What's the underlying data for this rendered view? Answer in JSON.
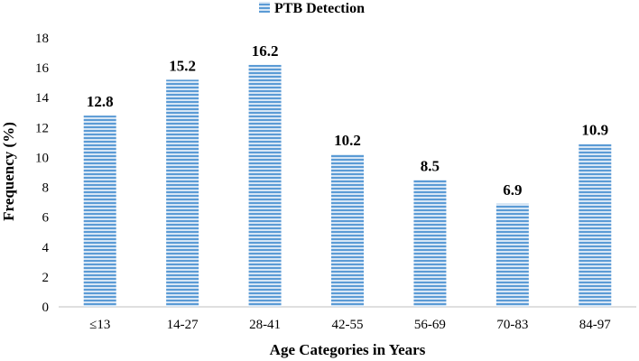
{
  "chart_data": {
    "type": "bar",
    "categories": [
      "≤13",
      "14-27",
      "28-41",
      "42-55",
      "56-69",
      "70-83",
      "84-97"
    ],
    "series": [
      {
        "name": "PTB Detection",
        "values": [
          12.8,
          15.2,
          16.2,
          10.2,
          8.5,
          6.9,
          10.9
        ]
      }
    ],
    "data_labels": [
      "12.8",
      "15.2",
      "16.2",
      "10.2",
      "8.5",
      "6.9",
      "10.9"
    ],
    "xlabel": "Age Categories in Years",
    "ylabel": "Frequency (%)",
    "ylim": [
      0,
      18
    ],
    "yticks": [
      0,
      2,
      4,
      6,
      8,
      10,
      12,
      14,
      16,
      18
    ],
    "grid": false,
    "legend_position": "top",
    "bar_color": "#5b9bd5",
    "bar_stripe_color": "#dbe8f5"
  }
}
